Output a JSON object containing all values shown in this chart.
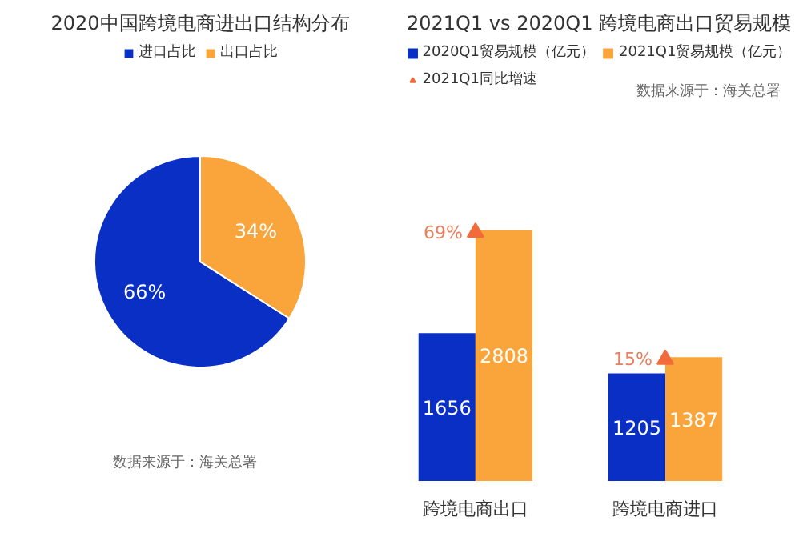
{
  "chart_data": [
    {
      "type": "pie",
      "title": "2020中国跨境电商进出口结构分布",
      "categories": [
        "进口占比",
        "出口占比"
      ],
      "values": [
        66,
        34
      ],
      "colors": [
        "#0a2fc4",
        "#f9a53c"
      ],
      "value_labels": [
        "66%",
        "34%"
      ],
      "legend": "top",
      "annotations": [
        "数据来源于：海关总署"
      ]
    },
    {
      "type": "bar",
      "title": "2021Q1 vs 2020Q1 跨境电商出口贸易规模",
      "categories": [
        "跨境电商出口",
        "跨境电商进口"
      ],
      "data_labels": true,
      "legend": "top",
      "series": [
        {
          "name": "2020Q1贸易规模（亿元）",
          "color": "#0a2fc4",
          "values": [
            1656,
            1205
          ]
        },
        {
          "name": "2021Q1贸易规模（亿元）",
          "color": "#f9a53c",
          "values": [
            2808,
            1387
          ]
        },
        {
          "name": "2021Q1同比增速",
          "type": "scatter",
          "marker": "triangle",
          "axis": "y2",
          "color": "#f26b3a",
          "values": [
            69,
            15
          ],
          "value_labels": [
            "69%",
            "15%"
          ]
        }
      ],
      "annotations": [
        "数据来源于：海关总署"
      ]
    }
  ]
}
